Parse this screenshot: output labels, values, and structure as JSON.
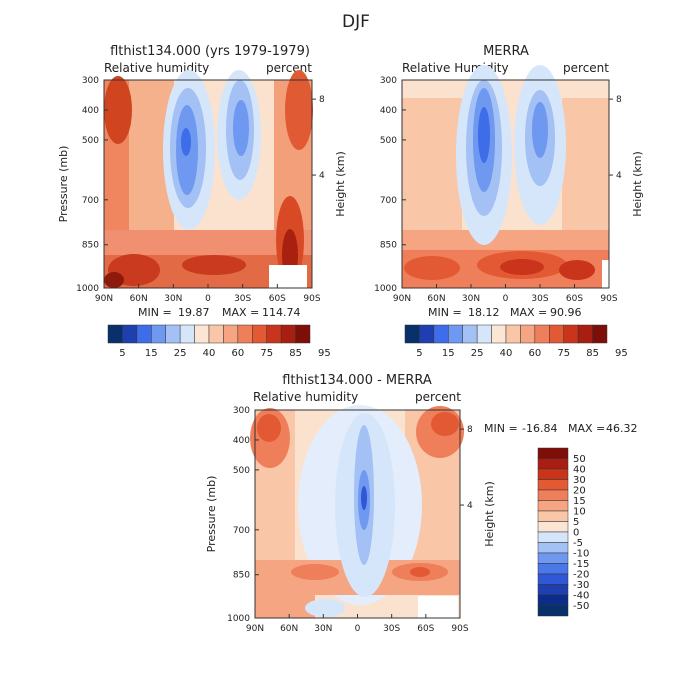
{
  "figure_title": "DJF",
  "chart_data": [
    {
      "type": "heatmap",
      "id": "model",
      "title": "flthist134.000 (yrs 1979-1979)",
      "field_label": "Relative humidity",
      "units": "percent",
      "xlabel": "",
      "ylabel": "Pressure (mb)",
      "y2label": "Height (km)",
      "x_ticks": [
        "90N",
        "60N",
        "30N",
        "0",
        "30S",
        "60S",
        "90S"
      ],
      "y_ticks": [
        "300",
        "400",
        "500",
        "700",
        "850",
        "1000"
      ],
      "y2_ticks": [
        "8",
        "4"
      ],
      "ylim": [
        1000,
        300
      ],
      "stats": {
        "min_label": "MIN =",
        "min": "19.87",
        "max_label": "MAX =",
        "max": "114.74"
      },
      "colorbar": {
        "levels": [
          "5",
          "15",
          "25",
          "40",
          "60",
          "75",
          "85",
          "95"
        ]
      }
    },
    {
      "type": "heatmap",
      "id": "merra",
      "title": "MERRA",
      "field_label": "Relative Humidity",
      "units": "percent",
      "xlabel": "",
      "ylabel": "Pressure (mb)",
      "y2label": "Height (km)",
      "x_ticks": [
        "90N",
        "60N",
        "30N",
        "0",
        "30S",
        "60S",
        "90S"
      ],
      "y_ticks": [
        "300",
        "400",
        "500",
        "700",
        "850",
        "1000"
      ],
      "y2_ticks": [
        "8",
        "4"
      ],
      "ylim": [
        1000,
        300
      ],
      "stats": {
        "min_label": "MIN =",
        "min": "18.12",
        "max_label": "MAX =",
        "max": "90.96"
      },
      "colorbar": {
        "levels": [
          "5",
          "15",
          "25",
          "40",
          "60",
          "75",
          "85",
          "95"
        ]
      }
    },
    {
      "type": "heatmap",
      "id": "diff",
      "title": "flthist134.000 - MERRA",
      "field_label": "Relative humidity",
      "units": "percent",
      "xlabel": "",
      "ylabel": "Pressure (mb)",
      "y2label": "Height (km)",
      "x_ticks": [
        "90N",
        "60N",
        "30N",
        "0",
        "30S",
        "60S",
        "90S"
      ],
      "y_ticks": [
        "300",
        "400",
        "500",
        "700",
        "850",
        "1000"
      ],
      "y2_ticks": [
        "8",
        "4"
      ],
      "ylim": [
        1000,
        300
      ],
      "stats": {
        "min_label": "MIN =",
        "min": "-16.84",
        "max_label": "MAX =",
        "max": "46.32"
      },
      "colorbar": {
        "levels": [
          "50",
          "40",
          "30",
          "20",
          "15",
          "10",
          "5",
          "0",
          "-5",
          "-10",
          "-15",
          "-20",
          "-30",
          "-40",
          "-50"
        ]
      }
    }
  ],
  "colors": {
    "abs_scale": [
      "#08306b",
      "#1f3fb0",
      "#3d6de8",
      "#6f98f0",
      "#a3c1f5",
      "#d6e6fa",
      "#fbe6d4",
      "#f9c6a8",
      "#f5a582",
      "#ef7f5a",
      "#e35934",
      "#c9341a",
      "#a81e10",
      "#7e0f08"
    ],
    "diff_scale": [
      "#7e0f08",
      "#a81e10",
      "#c9341a",
      "#e35934",
      "#ef7f5a",
      "#f5a582",
      "#f9c6a8",
      "#fbe6d4",
      "#d6e6fa",
      "#a3c1f5",
      "#6f98f0",
      "#4a78e8",
      "#2f57d6",
      "#1f3fb0",
      "#0b2c8a",
      "#08306b"
    ]
  }
}
